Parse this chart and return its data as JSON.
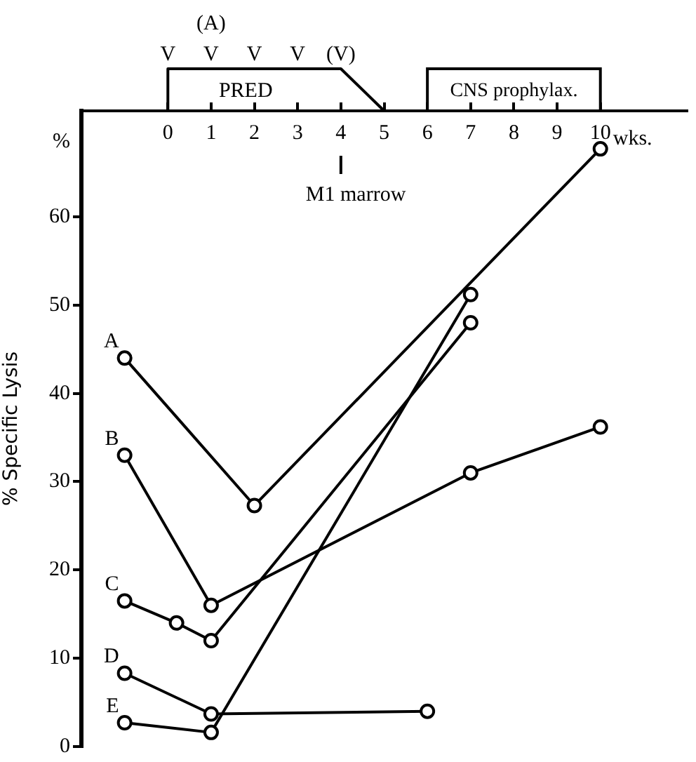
{
  "chart_data": {
    "type": "line",
    "ylabel": "% Specific Lysis",
    "xlabel": "wks.",
    "xlim": [
      -2,
      12
    ],
    "xticks": [
      0,
      1,
      2,
      3,
      4,
      5,
      6,
      7,
      8,
      9,
      10
    ],
    "ylim": [
      0,
      72
    ],
    "yticks": [
      0,
      10,
      20,
      30,
      40,
      50,
      60
    ],
    "grid": false,
    "legend": false,
    "marker": "circle",
    "line_style": "solid",
    "tick_labels": "xy",
    "series": [
      {
        "name": "A",
        "color": "#000000",
        "x": [
          -1,
          2,
          10
        ],
        "values": [
          44,
          27.3,
          67.7
        ]
      },
      {
        "name": "B",
        "color": "#000000",
        "x": [
          -1,
          1,
          7,
          10
        ],
        "values": [
          33,
          16,
          31,
          36.2
        ]
      },
      {
        "name": "C",
        "color": "#000000",
        "x": [
          -1,
          0.2,
          1,
          7
        ],
        "values": [
          16.5,
          14,
          12,
          48
        ]
      },
      {
        "name": "D",
        "color": "#000000",
        "x": [
          -1,
          1,
          6
        ],
        "values": [
          8.3,
          3.7,
          4
        ]
      },
      {
        "name": "E",
        "color": "#000000",
        "x": [
          -1,
          1,
          7
        ],
        "values": [
          2.7,
          1.6,
          51.2
        ]
      }
    ],
    "ref_lines": [
      {
        "axis": "x",
        "value": 4,
        "label": "M1 marrow"
      }
    ],
    "annotations": [
      "%",
      "V",
      "V",
      "V",
      "V",
      "(V)",
      "(A)",
      "PRED",
      "CNS prophylax."
    ]
  }
}
